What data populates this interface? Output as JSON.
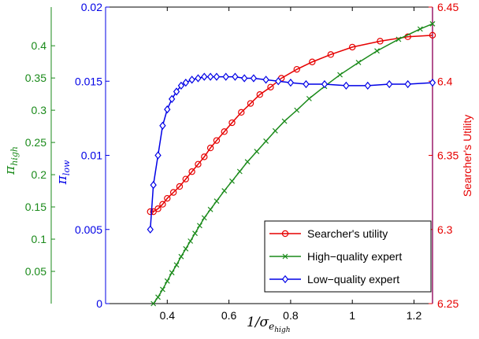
{
  "chart_data": {
    "type": "line",
    "x_ticks": [
      "0.4",
      "0.6",
      "0.8",
      "1",
      "1.2"
    ],
    "x_tick_values": [
      0.4,
      0.6,
      0.8,
      1.0,
      1.2
    ],
    "xlim": [
      0.2,
      1.26
    ],
    "xlabel": "1/σ",
    "xlabel_sub": "e",
    "xlabel_subsub": "high",
    "axes": {
      "high": {
        "label": "π",
        "label_sub": "high",
        "color": "#1a8a1a",
        "ylim": [
          0,
          0.46
        ],
        "ticks": [
          "0.05",
          "0.1",
          "0.15",
          "0.2",
          "0.25",
          "0.3",
          "0.35",
          "0.4"
        ],
        "tick_values": [
          0.05,
          0.1,
          0.15,
          0.2,
          0.25,
          0.3,
          0.35,
          0.4
        ]
      },
      "low": {
        "label": "π",
        "label_sub": "low",
        "color": "#0000e6",
        "ylim": [
          0,
          0.02
        ],
        "ticks": [
          "0",
          "0.005",
          "0.01",
          "0.015",
          "0.02"
        ],
        "tick_values": [
          0,
          0.005,
          0.01,
          0.015,
          0.02
        ]
      },
      "utility": {
        "label": "Searcher's Utility",
        "color": "#e60000",
        "ylim": [
          6.25,
          6.45
        ],
        "ticks": [
          "6.25",
          "6.3",
          "6.35",
          "6.4",
          "6.45"
        ],
        "tick_values": [
          6.25,
          6.3,
          6.35,
          6.4,
          6.45
        ]
      }
    },
    "series": [
      {
        "name": "Searcher's utility",
        "axis": "utility",
        "color": "#e60000",
        "marker": "circle",
        "x": [
          0.345,
          0.355,
          0.37,
          0.385,
          0.4,
          0.42,
          0.44,
          0.46,
          0.48,
          0.5,
          0.52,
          0.54,
          0.56,
          0.585,
          0.61,
          0.64,
          0.67,
          0.7,
          0.735,
          0.77,
          0.82,
          0.87,
          0.93,
          1.0,
          1.09,
          1.18,
          1.26
        ],
        "y": [
          6.312,
          6.312,
          6.314,
          6.317,
          6.321,
          6.325,
          6.329,
          6.334,
          6.339,
          6.344,
          6.349,
          6.355,
          6.36,
          6.366,
          6.372,
          6.379,
          6.385,
          6.391,
          6.396,
          6.402,
          6.408,
          6.413,
          6.418,
          6.423,
          6.427,
          6.43,
          6.431
        ]
      },
      {
        "name": "High-quality expert",
        "axis": "high",
        "color": "#1a8a1a",
        "marker": "x",
        "x": [
          0.355,
          0.37,
          0.385,
          0.4,
          0.415,
          0.43,
          0.445,
          0.46,
          0.475,
          0.49,
          0.505,
          0.52,
          0.54,
          0.56,
          0.585,
          0.61,
          0.635,
          0.66,
          0.69,
          0.72,
          0.75,
          0.78,
          0.82,
          0.86,
          0.91,
          0.96,
          1.02,
          1.08,
          1.15,
          1.22,
          1.26
        ],
        "y": [
          0.0,
          0.01,
          0.022,
          0.035,
          0.048,
          0.06,
          0.073,
          0.085,
          0.097,
          0.109,
          0.121,
          0.133,
          0.146,
          0.159,
          0.175,
          0.19,
          0.205,
          0.22,
          0.236,
          0.252,
          0.268,
          0.283,
          0.3,
          0.318,
          0.337,
          0.355,
          0.374,
          0.392,
          0.41,
          0.426,
          0.434
        ]
      },
      {
        "name": "Low-quality expert",
        "axis": "low",
        "color": "#0000e6",
        "marker": "diamond",
        "x": [
          0.345,
          0.355,
          0.37,
          0.385,
          0.4,
          0.415,
          0.43,
          0.445,
          0.46,
          0.48,
          0.5,
          0.52,
          0.54,
          0.56,
          0.59,
          0.62,
          0.65,
          0.68,
          0.72,
          0.76,
          0.8,
          0.85,
          0.91,
          0.98,
          1.05,
          1.12,
          1.18,
          1.26
        ],
        "y": [
          0.005,
          0.008,
          0.01,
          0.012,
          0.0131,
          0.0138,
          0.0143,
          0.0147,
          0.0149,
          0.0151,
          0.0152,
          0.0153,
          0.0153,
          0.0153,
          0.0153,
          0.0153,
          0.0152,
          0.0152,
          0.0151,
          0.015,
          0.0149,
          0.0148,
          0.0148,
          0.0147,
          0.0147,
          0.0148,
          0.0148,
          0.0149
        ]
      }
    ],
    "legend": {
      "position": "bottom-right",
      "entries": [
        "Searcher's utility",
        "High−quality expert",
        "Low−quality expert"
      ]
    },
    "grid": false
  }
}
